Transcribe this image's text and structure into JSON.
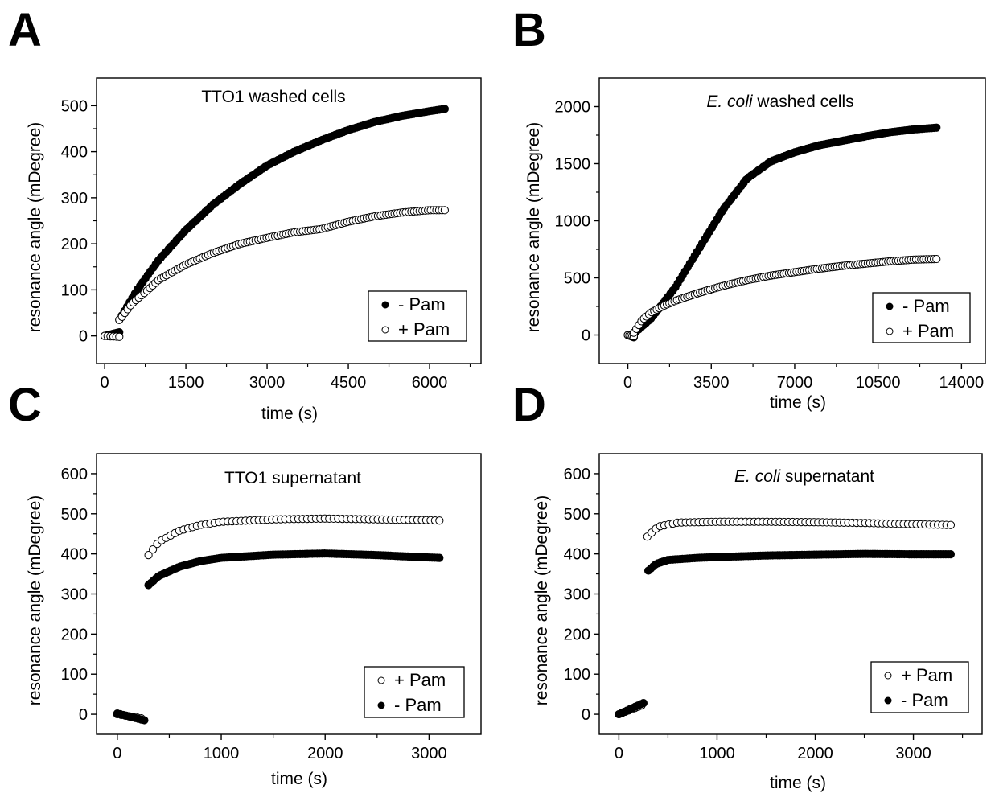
{
  "figure": {
    "colors": {
      "filled": "#000000",
      "open_fill": "#ffffff",
      "stroke": "#000000"
    }
  },
  "chart_data": [
    {
      "panel": "A",
      "type": "scatter",
      "title": "TTO1 washed cells",
      "title_parts": [
        {
          "text": "TTO1 washed cells",
          "italic": false
        }
      ],
      "xlabel": "time (s)",
      "ylabel": "resonance angle (mDegree)",
      "xlim": [
        -150,
        6950
      ],
      "ylim": [
        -60,
        560
      ],
      "xticks": [
        0,
        1500,
        3000,
        4500,
        6000
      ],
      "xticks_minor": [
        750,
        2250,
        3750,
        5250,
        6750
      ],
      "yticks": [
        0,
        100,
        200,
        300,
        400,
        500
      ],
      "yticks_minor": [
        50,
        150,
        250,
        350,
        450
      ],
      "grid": false,
      "legend": {
        "position": "bottom-right",
        "entries": [
          {
            "marker": "filled",
            "label": "-  Pam"
          },
          {
            "marker": "open",
            "label": "+ Pam"
          }
        ]
      },
      "series": [
        {
          "name": "-  Pam",
          "marker": "filled",
          "segments": [
            {
              "x_start": 0,
              "x_end": 270,
              "n": 8,
              "type": "linear",
              "y0": 0,
              "y1": 8
            },
            {
              "x_start": 270,
              "x_end": 6280,
              "n": 126,
              "type": "points",
              "points": [
                [
                  270,
                  35
                ],
                [
                  600,
                  100
                ],
                [
                  1000,
                  165
                ],
                [
                  1500,
                  230
                ],
                [
                  2000,
                  285
                ],
                [
                  2500,
                  330
                ],
                [
                  3000,
                  370
                ],
                [
                  3500,
                  400
                ],
                [
                  4000,
                  425
                ],
                [
                  4500,
                  447
                ],
                [
                  5000,
                  465
                ],
                [
                  5500,
                  478
                ],
                [
                  6000,
                  488
                ],
                [
                  6280,
                  493
                ]
              ]
            }
          ]
        },
        {
          "name": "+ Pam",
          "marker": "open",
          "segments": [
            {
              "x_start": 0,
              "x_end": 270,
              "n": 6,
              "type": "linear",
              "y0": 0,
              "y1": -2
            },
            {
              "x_start": 270,
              "x_end": 6280,
              "n": 118,
              "type": "points",
              "points": [
                [
                  280,
                  35
                ],
                [
                  500,
                  70
                ],
                [
                  800,
                  100
                ],
                [
                  1000,
                  122
                ],
                [
                  1500,
                  155
                ],
                [
                  2000,
                  180
                ],
                [
                  2500,
                  200
                ],
                [
                  3000,
                  213
                ],
                [
                  3500,
                  225
                ],
                [
                  4000,
                  232
                ],
                [
                  4500,
                  248
                ],
                [
                  5000,
                  260
                ],
                [
                  5500,
                  268
                ],
                [
                  6000,
                  273
                ],
                [
                  6280,
                  273
                ]
              ]
            }
          ]
        }
      ]
    },
    {
      "panel": "B",
      "type": "scatter",
      "title": "E. coli washed cells",
      "title_parts": [
        {
          "text": "E. coli",
          "italic": true
        },
        {
          "text": " washed cells",
          "italic": false
        }
      ],
      "xlabel": "time (s)",
      "ylabel": "resonance angle (mDegree)",
      "xlim": [
        -1200,
        15000
      ],
      "ylim": [
        -250,
        2250
      ],
      "xticks": [
        0,
        3500,
        7000,
        10500,
        14000
      ],
      "xticks_minor": [
        1750,
        5250,
        8750,
        12250
      ],
      "yticks": [
        0,
        500,
        1000,
        1500,
        2000
      ],
      "yticks_minor": [
        250,
        750,
        1250,
        1750
      ],
      "grid": false,
      "legend": {
        "position": "bottom-right",
        "entries": [
          {
            "marker": "filled",
            "label": "- Pam"
          },
          {
            "marker": "open",
            "label": "+ Pam"
          }
        ]
      },
      "series": [
        {
          "name": "- Pam",
          "marker": "filled",
          "segments": [
            {
              "x_start": 0,
              "x_end": 250,
              "n": 6,
              "type": "linear",
              "y0": 0,
              "y1": -20
            },
            {
              "x_start": 250,
              "x_end": 12950,
              "n": 125,
              "type": "points",
              "points": [
                [
                  300,
                  20
                ],
                [
                  1000,
                  150
                ],
                [
                  2000,
                  420
                ],
                [
                  3000,
                  760
                ],
                [
                  4000,
                  1100
                ],
                [
                  5000,
                  1370
                ],
                [
                  6000,
                  1520
                ],
                [
                  7000,
                  1600
                ],
                [
                  8000,
                  1660
                ],
                [
                  9000,
                  1700
                ],
                [
                  10000,
                  1740
                ],
                [
                  11000,
                  1775
                ],
                [
                  12000,
                  1800
                ],
                [
                  12950,
                  1815
                ]
              ]
            }
          ]
        },
        {
          "name": "+ Pam",
          "marker": "open",
          "segments": [
            {
              "x_start": 0,
              "x_end": 250,
              "n": 5,
              "type": "linear",
              "y0": 0,
              "y1": -10
            },
            {
              "x_start": 250,
              "x_end": 12950,
              "n": 120,
              "type": "points",
              "points": [
                [
                  250,
                  20
                ],
                [
                  600,
                  130
                ],
                [
                  1000,
                  200
                ],
                [
                  1500,
                  255
                ],
                [
                  2000,
                  300
                ],
                [
                  3000,
                  370
                ],
                [
                  4000,
                  430
                ],
                [
                  5000,
                  480
                ],
                [
                  6000,
                  520
                ],
                [
                  7000,
                  550
                ],
                [
                  8000,
                  580
                ],
                [
                  9000,
                  605
                ],
                [
                  10000,
                  625
                ],
                [
                  11000,
                  645
                ],
                [
                  12000,
                  660
                ],
                [
                  12950,
                  665
                ]
              ]
            }
          ]
        }
      ]
    },
    {
      "panel": "C",
      "type": "scatter",
      "title": "TTO1 supernatant",
      "title_parts": [
        {
          "text": "TTO1 supernatant",
          "italic": false
        }
      ],
      "xlabel": "time (s)",
      "ylabel": "resonance angle (mDegree)",
      "xlim": [
        -200,
        3500
      ],
      "ylim": [
        -50,
        650
      ],
      "xticks": [
        0,
        1000,
        2000,
        3000
      ],
      "xticks_minor": [
        500,
        1500,
        2500
      ],
      "yticks": [
        0,
        100,
        200,
        300,
        400,
        500,
        600
      ],
      "yticks_minor": [
        50,
        150,
        250,
        350,
        450,
        550
      ],
      "grid": false,
      "legend": {
        "position": "bottom-right",
        "entries": [
          {
            "marker": "open",
            "label": "+ Pam"
          },
          {
            "marker": "filled",
            "label": "- Pam"
          }
        ]
      },
      "series": [
        {
          "name": "+ Pam",
          "marker": "open",
          "segments": [
            {
              "x_start": 0,
              "x_end": 230,
              "n": 7,
              "type": "linear",
              "y0": 0,
              "y1": -10
            },
            {
              "x_start": 300,
              "x_end": 3100,
              "n": 67,
              "type": "points",
              "points": [
                [
                  300,
                  397
                ],
                [
                  400,
                  430
                ],
                [
                  600,
                  458
                ],
                [
                  800,
                  472
                ],
                [
                  1000,
                  480
                ],
                [
                  1500,
                  486
                ],
                [
                  2000,
                  488
                ],
                [
                  2500,
                  486
                ],
                [
                  3000,
                  484
                ],
                [
                  3100,
                  483
                ]
              ]
            }
          ]
        },
        {
          "name": "- Pam",
          "marker": "filled",
          "segments": [
            {
              "x_start": 0,
              "x_end": 260,
              "n": 10,
              "type": "linear",
              "y0": 2,
              "y1": -15
            },
            {
              "x_start": 300,
              "x_end": 3100,
              "n": 120,
              "type": "points",
              "points": [
                [
                  300,
                  322
                ],
                [
                  400,
                  345
                ],
                [
                  600,
                  368
                ],
                [
                  800,
                  382
                ],
                [
                  1000,
                  390
                ],
                [
                  1500,
                  398
                ],
                [
                  2000,
                  401
                ],
                [
                  2500,
                  397
                ],
                [
                  3000,
                  391
                ],
                [
                  3100,
                  390
                ]
              ]
            }
          ]
        }
      ]
    },
    {
      "panel": "D",
      "type": "scatter",
      "title": "E. coli supernatant",
      "title_parts": [
        {
          "text": "E. coli",
          "italic": true
        },
        {
          "text": " supernatant",
          "italic": false
        }
      ],
      "xlabel": "time (s)",
      "ylabel": "resonance angle (mDegree)",
      "xlim": [
        -200,
        3700
      ],
      "ylim": [
        -50,
        650
      ],
      "xticks": [
        0,
        1000,
        2000,
        3000
      ],
      "xticks_minor": [
        500,
        1500,
        2500,
        3500
      ],
      "yticks": [
        0,
        100,
        200,
        300,
        400,
        500,
        600
      ],
      "yticks_minor": [
        50,
        150,
        250,
        350,
        450,
        550
      ],
      "grid": false,
      "legend": {
        "position": "bottom-right",
        "entries": [
          {
            "marker": "open",
            "label": "+ Pam"
          },
          {
            "marker": "filled",
            "label": "- Pam"
          }
        ]
      },
      "series": [
        {
          "name": "+ Pam",
          "marker": "open",
          "segments": [
            {
              "x_start": 0,
              "x_end": 230,
              "n": 8,
              "type": "linear",
              "y0": 0,
              "y1": 22
            },
            {
              "x_start": 290,
              "x_end": 3380,
              "n": 72,
              "type": "points",
              "points": [
                [
                  290,
                  443
                ],
                [
                  400,
                  468
                ],
                [
                  600,
                  478
                ],
                [
                  1000,
                  480
                ],
                [
                  1500,
                  480
                ],
                [
                  2000,
                  479
                ],
                [
                  2500,
                  477
                ],
                [
                  3000,
                  474
                ],
                [
                  3380,
                  472
                ]
              ]
            }
          ]
        },
        {
          "name": "- Pam",
          "marker": "filled",
          "segments": [
            {
              "x_start": 0,
              "x_end": 250,
              "n": 10,
              "type": "linear",
              "y0": 0,
              "y1": 28
            },
            {
              "x_start": 300,
              "x_end": 3380,
              "n": 125,
              "type": "points",
              "points": [
                [
                  300,
                  358
                ],
                [
                  380,
                  375
                ],
                [
                  500,
                  385
                ],
                [
                  800,
                  390
                ],
                [
                  1000,
                  392
                ],
                [
                  1500,
                  396
                ],
                [
                  2000,
                  398
                ],
                [
                  2500,
                  400
                ],
                [
                  3000,
                  399
                ],
                [
                  3380,
                  399
                ]
              ]
            }
          ]
        }
      ]
    }
  ]
}
